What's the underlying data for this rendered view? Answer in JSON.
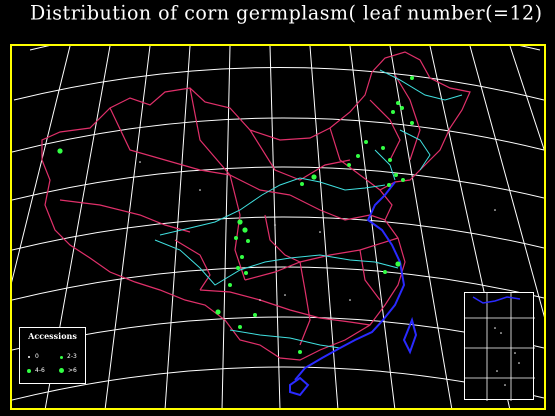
{
  "title": "Distribution of corn germplasm( leaf number(=12)",
  "legend": {
    "title": "Accessions",
    "items": [
      {
        "label": "0"
      },
      {
        "label": "2-3"
      },
      {
        "label": "4-6"
      },
      {
        "label": ">6"
      }
    ]
  },
  "colors": {
    "background": "#000000",
    "frame": "#ffff00",
    "graticule": "#ffffff",
    "borders": "#e0306a",
    "rivers": "#40e0e0",
    "coast": "#2a2aff",
    "points": "#33ff44"
  }
}
